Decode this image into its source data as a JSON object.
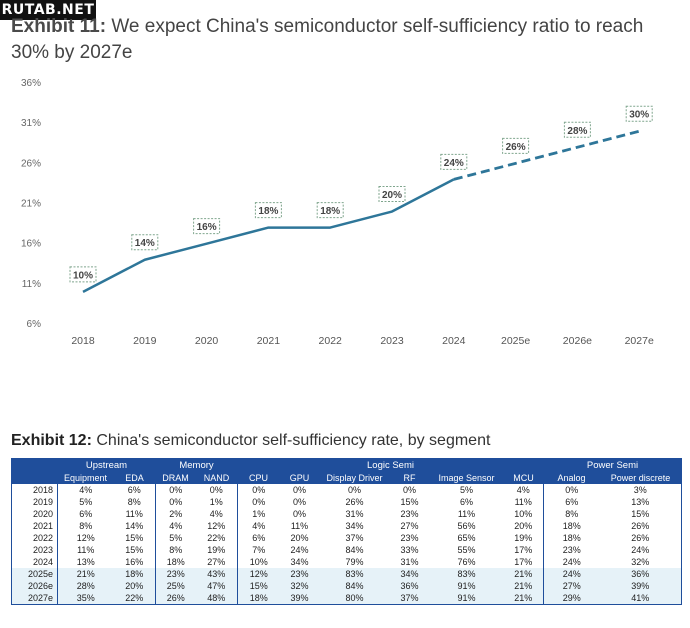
{
  "watermark": "RUTAB.NET",
  "exhibit11": {
    "label": "Exhibit 11:",
    "title": "We expect China's semiconductor self-sufficiency ratio to reach 30% by 2027e"
  },
  "chart_data": {
    "type": "line",
    "title": "We expect China's semiconductor self-sufficiency ratio to reach 30% by 2027e",
    "categories": [
      "2018",
      "2019",
      "2020",
      "2021",
      "2022",
      "2023",
      "2024",
      "2025e",
      "2026e",
      "2027e"
    ],
    "values": [
      10,
      14,
      16,
      18,
      18,
      20,
      24,
      26,
      28,
      30
    ],
    "data_labels": [
      "10%",
      "14%",
      "16%",
      "18%",
      "18%",
      "20%",
      "24%",
      "26%",
      "28%",
      "30%"
    ],
    "actual_through": "2024",
    "forecast_style": "dashed",
    "yticks": [
      6,
      11,
      16,
      21,
      26,
      31,
      36
    ],
    "ytick_labels": [
      "6%",
      "11%",
      "16%",
      "21%",
      "26%",
      "31%",
      "36%"
    ],
    "ylim": [
      6,
      36
    ],
    "grid": false,
    "line_color": "#2e7699"
  },
  "exhibit12": {
    "label": "Exhibit 12:",
    "title": "China's semiconductor self-sufficiency rate, by segment",
    "groups": [
      {
        "label": "",
        "span": 1
      },
      {
        "label": "Upstream",
        "span": 2
      },
      {
        "label": "Memory",
        "span": 2
      },
      {
        "label": "Logic Semi",
        "span": 6
      },
      {
        "label": "Power Semi",
        "span": 2
      }
    ],
    "columns": [
      "",
      "Equipment",
      "EDA",
      "DRAM",
      "NAND",
      "CPU",
      "GPU",
      "Display Driver",
      "RF",
      "Image Sensor",
      "MCU",
      "Analog",
      "Power discrete"
    ],
    "rows": [
      [
        "2018",
        "4%",
        "6%",
        "0%",
        "0%",
        "0%",
        "0%",
        "0%",
        "0%",
        "5%",
        "4%",
        "0%",
        "3%"
      ],
      [
        "2019",
        "5%",
        "8%",
        "0%",
        "1%",
        "0%",
        "0%",
        "26%",
        "15%",
        "6%",
        "11%",
        "6%",
        "13%"
      ],
      [
        "2020",
        "6%",
        "11%",
        "2%",
        "4%",
        "1%",
        "0%",
        "31%",
        "23%",
        "11%",
        "10%",
        "8%",
        "15%"
      ],
      [
        "2021",
        "8%",
        "14%",
        "4%",
        "12%",
        "4%",
        "11%",
        "34%",
        "27%",
        "56%",
        "20%",
        "18%",
        "26%"
      ],
      [
        "2022",
        "12%",
        "15%",
        "5%",
        "22%",
        "6%",
        "20%",
        "37%",
        "23%",
        "65%",
        "19%",
        "18%",
        "26%"
      ],
      [
        "2023",
        "11%",
        "15%",
        "8%",
        "19%",
        "7%",
        "24%",
        "84%",
        "33%",
        "55%",
        "17%",
        "23%",
        "24%"
      ],
      [
        "2024",
        "13%",
        "16%",
        "18%",
        "27%",
        "10%",
        "34%",
        "79%",
        "31%",
        "76%",
        "17%",
        "24%",
        "32%"
      ],
      [
        "2025e",
        "21%",
        "18%",
        "23%",
        "43%",
        "12%",
        "23%",
        "83%",
        "34%",
        "83%",
        "21%",
        "24%",
        "36%"
      ],
      [
        "2026e",
        "28%",
        "20%",
        "25%",
        "47%",
        "15%",
        "32%",
        "84%",
        "36%",
        "91%",
        "21%",
        "27%",
        "39%"
      ],
      [
        "2027e",
        "35%",
        "22%",
        "26%",
        "48%",
        "18%",
        "39%",
        "80%",
        "37%",
        "91%",
        "21%",
        "29%",
        "41%"
      ]
    ]
  }
}
